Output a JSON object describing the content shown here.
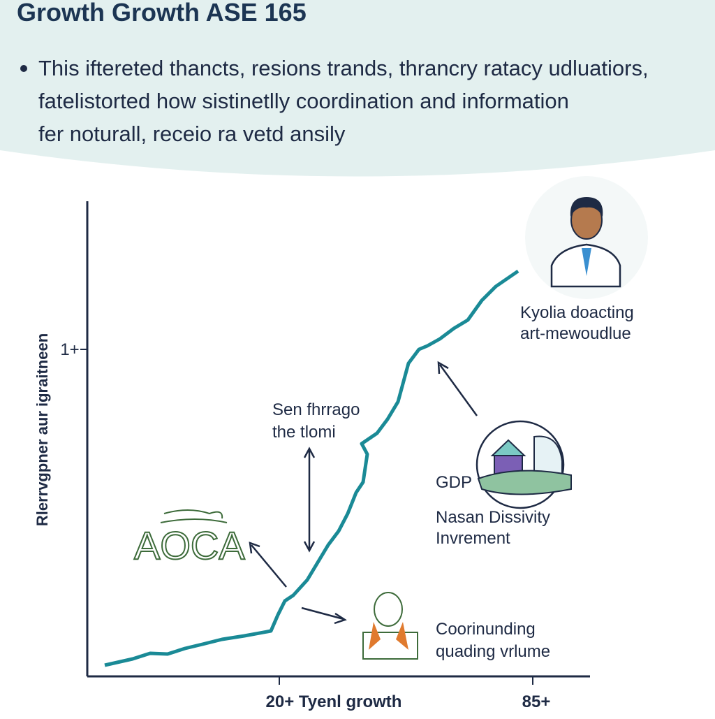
{
  "header": {
    "title": "Growth Growth ASE 165",
    "bullet_lines": [
      "This iftereted thancts, resions trands, thrancry ratacy udluatiors,",
      "fatelistorted how sistinetlly coordination and information",
      "fer noturall, receio ra vetd ansily"
    ]
  },
  "chart": {
    "y_axis_label": "Rlerrvgpner aur igraitneen",
    "y_tick": "1+",
    "x_labels": [
      "20+ Tyenl growth",
      "85+"
    ]
  },
  "annotations": {
    "middle": [
      "Sen fhrrago",
      "the tlomi"
    ],
    "logo": "AOCA",
    "person": [
      "Kyolia doacting",
      "art-mewoudlue"
    ],
    "gdp": "GDP",
    "building": [
      "Nasan Dissivity",
      "Invrement"
    ],
    "woman": [
      "Coorinunding",
      "quading vrlume"
    ]
  }
}
